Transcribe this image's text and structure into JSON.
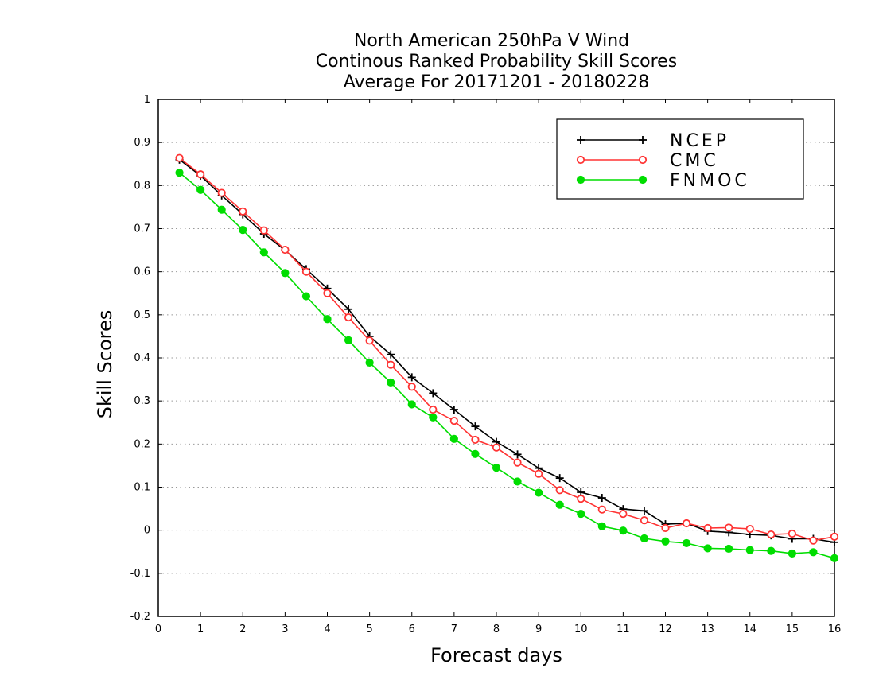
{
  "chart_data": {
    "type": "line",
    "title": [
      "North American 250hPa V Wind",
      "Continous Ranked Probability Skill Scores",
      "Average For 20171201 - 20180228"
    ],
    "xlabel": "Forecast days",
    "ylabel": "Skill Scores",
    "xlim": [
      0,
      16
    ],
    "ylim": [
      -0.2,
      1
    ],
    "xticks": [
      0,
      1,
      2,
      3,
      4,
      5,
      6,
      7,
      8,
      9,
      10,
      11,
      12,
      13,
      14,
      15,
      16
    ],
    "xtick_labels": [
      "0",
      "1",
      "2",
      "3",
      "4",
      "5",
      "6",
      "7",
      "8",
      "9",
      "10",
      "11",
      "12",
      "13",
      "14",
      "15",
      "16"
    ],
    "yticks": [
      -0.2,
      -0.1,
      0,
      0.1,
      0.2,
      0.3,
      0.4,
      0.5,
      0.6,
      0.7,
      0.8,
      0.9,
      1
    ],
    "ytick_labels": [
      "-0.2",
      "-0.1",
      "0",
      "0.1",
      "0.2",
      "0.3",
      "0.4",
      "0.5",
      "0.6",
      "0.7",
      "0.8",
      "0.9",
      "1"
    ],
    "grid": "horizontal dotted",
    "legend_position": "top-right",
    "x": [
      0.5,
      1,
      1.5,
      2,
      2.5,
      3,
      3.5,
      4,
      4.5,
      5,
      5.5,
      6,
      6.5,
      7,
      7.5,
      8,
      8.5,
      9,
      9.5,
      10,
      10.5,
      11,
      11.5,
      12,
      12.5,
      13,
      13.5,
      14,
      14.5,
      15,
      15.5,
      16
    ],
    "series": [
      {
        "name": "NCEP",
        "color": "#000000",
        "marker": "plus",
        "values": [
          0.86,
          0.823,
          0.777,
          0.733,
          0.688,
          0.65,
          0.606,
          0.561,
          0.513,
          0.45,
          0.408,
          0.355,
          0.318,
          0.28,
          0.241,
          0.205,
          0.176,
          0.144,
          0.121,
          0.088,
          0.075,
          0.049,
          0.045,
          0.014,
          0.016,
          -0.002,
          -0.005,
          -0.01,
          -0.012,
          -0.02,
          -0.02,
          -0.028
        ]
      },
      {
        "name": "CMC",
        "color": "#ff3333",
        "marker": "open-circle",
        "values": [
          0.864,
          0.826,
          0.783,
          0.74,
          0.696,
          0.651,
          0.6,
          0.55,
          0.494,
          0.44,
          0.384,
          0.333,
          0.28,
          0.254,
          0.21,
          0.192,
          0.157,
          0.131,
          0.093,
          0.073,
          0.048,
          0.038,
          0.023,
          0.005,
          0.016,
          0.005,
          0.006,
          0.003,
          -0.01,
          -0.008,
          -0.024,
          -0.015
        ]
      },
      {
        "name": "FNMOC",
        "color": "#00dd00",
        "marker": "filled-circle",
        "values": [
          0.83,
          0.79,
          0.744,
          0.697,
          0.645,
          0.597,
          0.543,
          0.49,
          0.441,
          0.389,
          0.343,
          0.292,
          0.262,
          0.212,
          0.177,
          0.145,
          0.113,
          0.087,
          0.059,
          0.038,
          0.009,
          -0.001,
          -0.019,
          -0.026,
          -0.03,
          -0.042,
          -0.043,
          -0.046,
          -0.048,
          -0.054,
          -0.051,
          -0.065
        ]
      }
    ]
  }
}
